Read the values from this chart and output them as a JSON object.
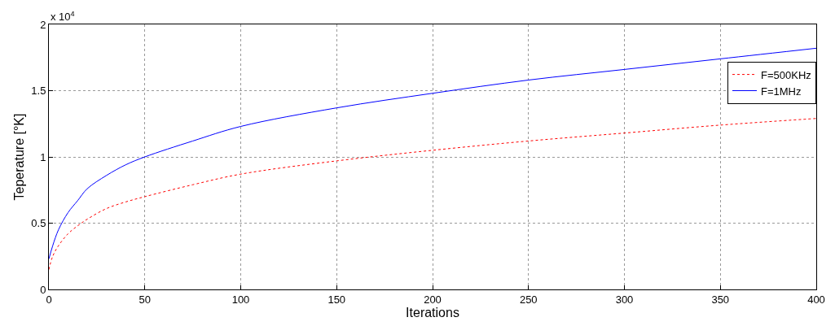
{
  "chart_data": {
    "type": "line",
    "xlabel": "Iterations",
    "ylabel": "Teperature [°K]",
    "annotations": [
      "x 10$^{4}$"
    ],
    "x": [
      0,
      2,
      5,
      10,
      15,
      20,
      30,
      40,
      50,
      75,
      100,
      150,
      200,
      250,
      300,
      350,
      400
    ],
    "series": [
      {
        "name": "F=500KHz",
        "color": "#ff0000",
        "line_style": "dotted",
        "values": [
          0.15,
          0.25,
          0.33,
          0.42,
          0.48,
          0.53,
          0.61,
          0.66,
          0.7,
          0.79,
          0.87,
          0.97,
          1.05,
          1.12,
          1.18,
          1.24,
          1.29
        ]
      },
      {
        "name": "F=1MHz",
        "color": "#0000ff",
        "line_style": "solid",
        "values": [
          0.23,
          0.33,
          0.45,
          0.58,
          0.67,
          0.76,
          0.86,
          0.94,
          1.0,
          1.12,
          1.23,
          1.37,
          1.48,
          1.58,
          1.66,
          1.74,
          1.82
        ]
      }
    ],
    "xlim": [
      0,
      400
    ],
    "xticks": [
      0,
      50,
      100,
      150,
      200,
      250,
      300,
      350,
      400
    ],
    "ylim": [
      0,
      2
    ],
    "yticks": [
      0,
      0.5,
      1,
      1.5,
      2
    ],
    "grid": true,
    "legend": "top right"
  }
}
